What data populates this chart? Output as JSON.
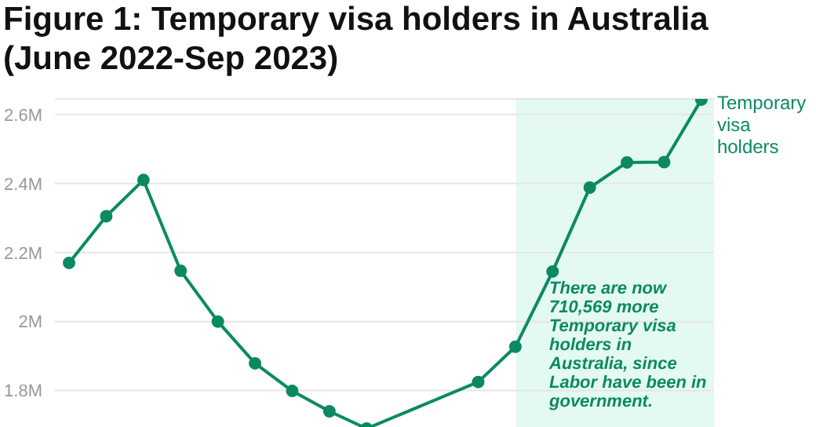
{
  "chart_data": {
    "type": "line",
    "title": "Figure 1: Temporary visa holders in Australia (June 2022-Sep 2023)",
    "categories": [
      null,
      null,
      null,
      null,
      null,
      null,
      null,
      null,
      null,
      null,
      null,
      null,
      null,
      null,
      null,
      null,
      null,
      null
    ],
    "series": [
      {
        "name": "Temporary visa holders",
        "color": "#0b8a62",
        "values": [
          2.17,
          2.305,
          2.41,
          2.147,
          2.0,
          1.879,
          1.799,
          1.74,
          1.69,
          null,
          null,
          1.825,
          1.927,
          2.145,
          2.388,
          2.461,
          2.462,
          2.643
        ]
      }
    ],
    "ylim": [
      1.69,
      2.645
    ],
    "yticks": [
      {
        "value": 1.8,
        "label": "1.8M"
      },
      {
        "value": 2,
        "label": "2M"
      },
      {
        "value": 2.2,
        "label": "2.2M"
      },
      {
        "value": 2.4,
        "label": "2.4M"
      },
      {
        "value": 2.6,
        "label": "2.6M"
      }
    ],
    "annotations": [
      "There are now 710,569 more Temporary visa holders in Australia, since Labor have been in government."
    ],
    "grid": "y",
    "marker": "circle",
    "line_style": "solid",
    "tick_labels": "y",
    "legend": "top right"
  }
}
